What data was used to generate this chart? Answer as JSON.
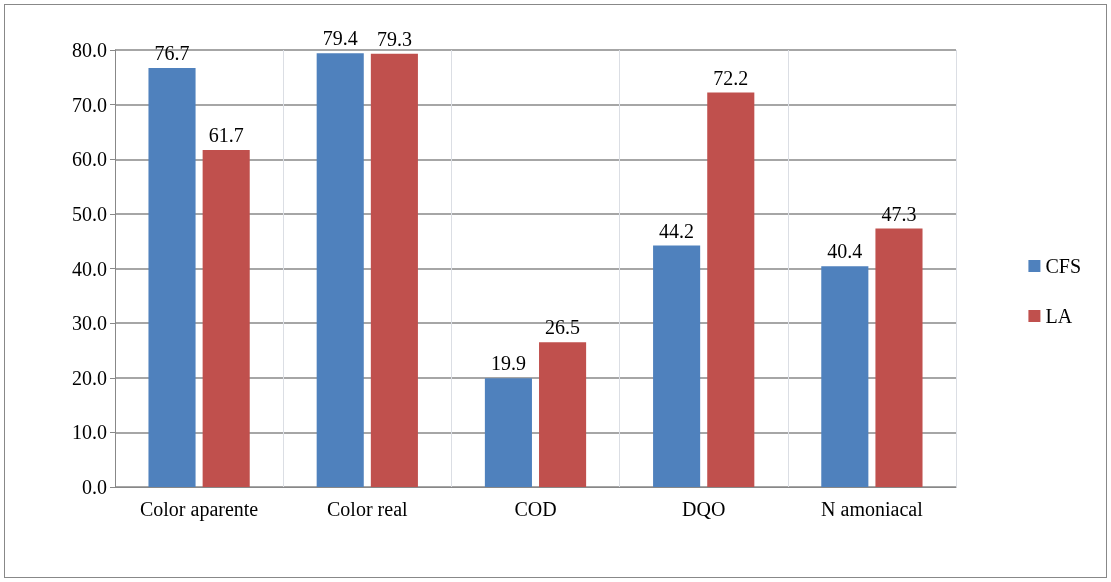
{
  "chart_data": {
    "type": "bar",
    "categories": [
      "Color aparente",
      "Color real",
      "COD",
      "DQO",
      "N amoniacal"
    ],
    "series": [
      {
        "name": "CFS",
        "color": "#4f81bd",
        "values": [
          76.7,
          79.4,
          19.9,
          44.2,
          40.4
        ]
      },
      {
        "name": "LA",
        "color": "#c0504d",
        "values": [
          61.7,
          79.3,
          26.5,
          72.2,
          47.3
        ]
      }
    ],
    "ylim": [
      0,
      80
    ],
    "yticks": [
      {
        "value": 0,
        "label": "0.0"
      },
      {
        "value": 10,
        "label": "10.0"
      },
      {
        "value": 20,
        "label": "20.0"
      },
      {
        "value": 30,
        "label": "30.0"
      },
      {
        "value": 40,
        "label": "40.0"
      },
      {
        "value": 50,
        "label": "50.0"
      },
      {
        "value": 60,
        "label": "60.0"
      },
      {
        "value": 70,
        "label": "70.0"
      },
      {
        "value": 80,
        "label": "80.0"
      }
    ],
    "grid": true,
    "legend": "right",
    "data_labels": true
  }
}
